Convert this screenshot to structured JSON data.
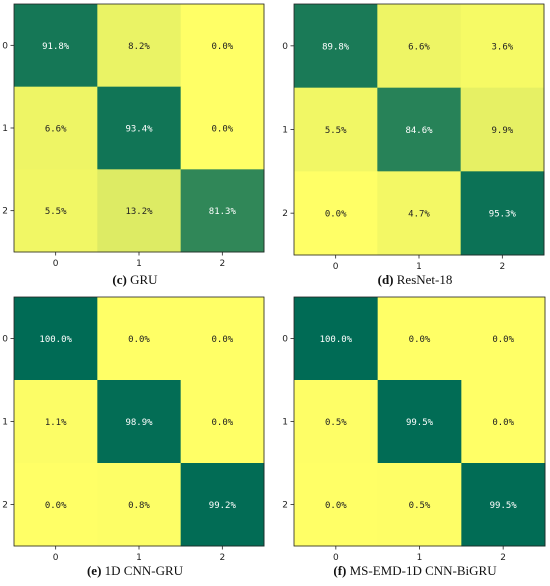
{
  "colors": {
    "low": "#ffff66",
    "high": "#006b55",
    "text_dark": "#222222",
    "text_light": "#ffffff"
  },
  "chart_data": [
    {
      "type": "heatmap",
      "caption_letter": "(c)",
      "caption_text": " GRU",
      "x_categories": [
        "0",
        "1",
        "2"
      ],
      "y_categories": [
        "0",
        "1",
        "2"
      ],
      "values": [
        [
          91.8,
          8.2,
          0.0
        ],
        [
          6.6,
          93.4,
          0.0
        ],
        [
          5.5,
          13.2,
          81.3
        ]
      ],
      "labels": [
        [
          "91.8%",
          "8.2%",
          "0.0%"
        ],
        [
          "6.6%",
          "93.4%",
          "0.0%"
        ],
        [
          "5.5%",
          "13.2%",
          "81.3%"
        ]
      ]
    },
    {
      "type": "heatmap",
      "caption_letter": "(d)",
      "caption_text": " ResNet-18",
      "x_categories": [
        "0",
        "1",
        "2"
      ],
      "y_categories": [
        "0",
        "1",
        "2"
      ],
      "values": [
        [
          89.8,
          6.6,
          3.6
        ],
        [
          5.5,
          84.6,
          9.9
        ],
        [
          0.0,
          4.7,
          95.3
        ]
      ],
      "labels": [
        [
          "89.8%",
          "6.6%",
          "3.6%"
        ],
        [
          "5.5%",
          "84.6%",
          "9.9%"
        ],
        [
          "0.0%",
          "4.7%",
          "95.3%"
        ]
      ]
    },
    {
      "type": "heatmap",
      "caption_letter": "(e)",
      "caption_text": " 1D CNN-GRU",
      "x_categories": [
        "0",
        "1",
        "2"
      ],
      "y_categories": [
        "0",
        "1",
        "2"
      ],
      "values": [
        [
          100.0,
          0.0,
          0.0
        ],
        [
          1.1,
          98.9,
          0.0
        ],
        [
          0.0,
          0.8,
          99.2
        ]
      ],
      "labels": [
        [
          "100.0%",
          "0.0%",
          "0.0%"
        ],
        [
          "1.1%",
          "98.9%",
          "0.0%"
        ],
        [
          "0.0%",
          "0.8%",
          "99.2%"
        ]
      ]
    },
    {
      "type": "heatmap",
      "caption_letter": "(f)",
      "caption_text": " MS-EMD-1D CNN-BiGRU",
      "x_categories": [
        "0",
        "1",
        "2"
      ],
      "y_categories": [
        "0",
        "1",
        "2"
      ],
      "values": [
        [
          100.0,
          0.0,
          0.0
        ],
        [
          0.5,
          99.5,
          0.0
        ],
        [
          0.0,
          0.5,
          99.5
        ]
      ],
      "labels": [
        [
          "100.0%",
          "0.0%",
          "0.0%"
        ],
        [
          "0.5%",
          "99.5%",
          "0.0%"
        ],
        [
          "0.0%",
          "0.5%",
          "99.5%"
        ]
      ]
    }
  ]
}
